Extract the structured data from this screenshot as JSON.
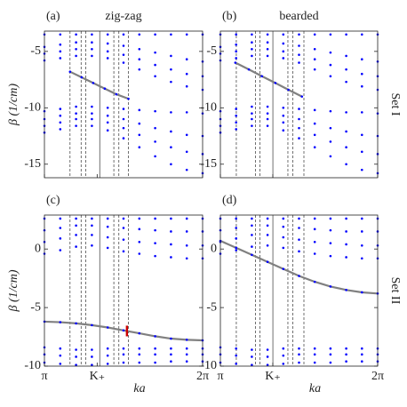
{
  "chart_data": [
    {
      "type": "scatter",
      "title": "(a)",
      "subtitle": "zig-zag",
      "ylabel": "β (1/cm)",
      "side_label": "Set I",
      "xlim": [
        3.1416,
        6.2832
      ],
      "ylim": [
        -16.2,
        -3.2
      ],
      "yticks": [
        -5,
        -10,
        -15
      ],
      "xticks": [
        {
          "value": 3.1416,
          "label": "π"
        },
        {
          "value": 4.1888,
          "label": "K₊"
        },
        {
          "value": 6.2832,
          "label": "2π"
        }
      ],
      "xtick_labels": false,
      "x": [
        3.1416,
        3.4558,
        3.7699,
        4.0841,
        4.3982,
        4.7124,
        5.0265,
        5.3407,
        5.6549,
        5.969,
        6.2832
      ],
      "vlines": [
        {
          "x": 3.65,
          "style": "dashed"
        },
        {
          "x": 3.87,
          "style": "dashed"
        },
        {
          "x": 3.96,
          "style": "dashed"
        },
        {
          "x": 4.24,
          "style": "solid"
        },
        {
          "x": 4.52,
          "style": "dashed"
        },
        {
          "x": 4.62,
          "style": "dashed"
        },
        {
          "x": 4.81,
          "style": "dashed"
        }
      ],
      "series": [
        {
          "color": "#0000ff",
          "values": [
            -3.5,
            -3.5,
            -3.5,
            -3.5,
            -3.5,
            -3.5,
            -3.5,
            -3.5,
            -3.5,
            -3.5,
            -3.5
          ]
        },
        {
          "color": "#0000ff",
          "values": [
            -4.6,
            -4.4,
            -4.2,
            -4.2,
            -4.3,
            -4.5,
            -4.8,
            -5.1,
            -5.4,
            -5.7,
            -5.9
          ]
        },
        {
          "color": "#0000ff",
          "values": [
            -5.2,
            -5.0,
            -4.8,
            -4.8,
            -5.0,
            -5.3,
            -5.7,
            -6.2,
            -6.6,
            -7.0,
            -7.2
          ]
        },
        {
          "color": "#0000ff",
          "values": [
            -5.8,
            -5.6,
            -5.4,
            -5.4,
            -5.6,
            -6.0,
            -6.6,
            -7.2,
            -7.7,
            -8.1,
            -8.4
          ]
        },
        {
          "color": "#0000ff",
          "values": [
            -10.3,
            -10.1,
            -9.9,
            -9.9,
            -10.0,
            -10.1,
            -10.2,
            -10.3,
            -10.4,
            -10.4,
            -10.5
          ]
        },
        {
          "color": "#0000ff",
          "values": [
            -11.0,
            -10.7,
            -10.5,
            -10.5,
            -10.7,
            -11.0,
            -11.4,
            -11.8,
            -12.1,
            -12.4,
            -12.5
          ]
        },
        {
          "color": "#0000ff",
          "values": [
            -11.6,
            -11.3,
            -11.0,
            -11.0,
            -11.3,
            -11.8,
            -12.4,
            -13.0,
            -13.5,
            -13.9,
            -14.1
          ]
        },
        {
          "color": "#0000ff",
          "values": [
            -12.2,
            -11.9,
            -11.6,
            -11.6,
            -12.0,
            -12.7,
            -13.5,
            -14.3,
            -15.0,
            -15.5,
            -15.8
          ]
        },
        {
          "color": "#0000ff",
          "line_color": "#808080",
          "x": [
            3.65,
            3.88,
            4.11,
            4.34,
            4.57,
            4.81
          ],
          "values": [
            -6.8,
            -7.3,
            -7.8,
            -8.3,
            -8.8,
            -9.2
          ]
        }
      ]
    },
    {
      "type": "scatter",
      "title": "(b)",
      "subtitle": "bearded",
      "xlim": [
        3.1416,
        6.2832
      ],
      "ylim": [
        -16.2,
        -3.2
      ],
      "yticks": [
        -5,
        -10,
        -15
      ],
      "xticks": [
        {
          "value": 3.1416,
          "label": "π"
        },
        {
          "value": 4.1888,
          "label": "K₊"
        },
        {
          "value": 6.2832,
          "label": "2π"
        }
      ],
      "xtick_labels": false,
      "x": [
        3.1416,
        3.4558,
        3.7699,
        4.0841,
        4.3982,
        4.7124,
        5.0265,
        5.3407,
        5.6549,
        5.969,
        6.2832
      ],
      "vlines": [
        {
          "x": 3.46,
          "style": "dashed"
        },
        {
          "x": 3.84,
          "style": "dashed"
        },
        {
          "x": 3.93,
          "style": "dashed"
        },
        {
          "x": 4.19,
          "style": "solid"
        },
        {
          "x": 4.49,
          "style": "dashed"
        },
        {
          "x": 4.59,
          "style": "dashed"
        },
        {
          "x": 4.81,
          "style": "dashed"
        }
      ],
      "series": [
        {
          "color": "#0000ff",
          "values": [
            -3.5,
            -3.5,
            -3.5,
            -3.5,
            -3.5,
            -3.5,
            -3.5,
            -3.5,
            -3.5,
            -3.5,
            -3.5
          ]
        },
        {
          "color": "#0000ff",
          "values": [
            -4.6,
            -4.4,
            -4.2,
            -4.2,
            -4.3,
            -4.5,
            -4.8,
            -5.1,
            -5.4,
            -5.7,
            -5.9
          ]
        },
        {
          "color": "#0000ff",
          "values": [
            -5.2,
            -5.0,
            -4.8,
            -4.8,
            -5.0,
            -5.3,
            -5.7,
            -6.2,
            -6.6,
            -7.0,
            -7.2
          ]
        },
        {
          "color": "#0000ff",
          "values": [
            -5.8,
            -5.6,
            -5.4,
            -5.4,
            -5.6,
            -6.0,
            -6.6,
            -7.2,
            -7.7,
            -8.1,
            -8.4
          ]
        },
        {
          "color": "#0000ff",
          "values": [
            -10.3,
            -10.1,
            -9.9,
            -9.9,
            -10.0,
            -10.1,
            -10.2,
            -10.3,
            -10.4,
            -10.4,
            -10.5
          ]
        },
        {
          "color": "#0000ff",
          "values": [
            -11.0,
            -10.7,
            -10.5,
            -10.5,
            -10.7,
            -11.0,
            -11.4,
            -11.8,
            -12.1,
            -12.4,
            -12.5
          ]
        },
        {
          "color": "#0000ff",
          "values": [
            -11.6,
            -11.3,
            -11.0,
            -11.0,
            -11.3,
            -11.8,
            -12.4,
            -13.0,
            -13.5,
            -13.9,
            -14.1
          ]
        },
        {
          "color": "#0000ff",
          "values": [
            -12.2,
            -11.9,
            -11.6,
            -11.6,
            -12.0,
            -12.7,
            -13.5,
            -14.3,
            -15.0,
            -15.5,
            -15.8
          ]
        },
        {
          "color": "#0000ff",
          "line_color": "#808080",
          "x": [
            3.44,
            3.71,
            3.97,
            4.24,
            4.5,
            4.77
          ],
          "values": [
            -6.0,
            -6.6,
            -7.2,
            -7.8,
            -8.4,
            -9.0
          ]
        }
      ]
    },
    {
      "type": "scatter",
      "title": "(c)",
      "ylabel": "β (1/cm)",
      "xlabel": "ka",
      "side_label": "Set II",
      "xlim": [
        3.1416,
        6.2832
      ],
      "ylim": [
        -10,
        2.9
      ],
      "yticks": [
        0,
        -5,
        -10
      ],
      "xticks": [
        {
          "value": 3.1416,
          "label": "π"
        },
        {
          "value": 4.1888,
          "label": "K₊"
        },
        {
          "value": 6.2832,
          "label": "2π"
        }
      ],
      "xtick_labels": true,
      "x": [
        3.1416,
        3.4558,
        3.7699,
        4.0841,
        4.3982,
        4.7124,
        5.0265,
        5.3407,
        5.6549,
        5.969,
        6.2832
      ],
      "vlines": [
        {
          "x": 3.65,
          "style": "dashed"
        },
        {
          "x": 3.87,
          "style": "dashed"
        },
        {
          "x": 3.96,
          "style": "dashed"
        },
        {
          "x": 4.24,
          "style": "solid"
        },
        {
          "x": 4.52,
          "style": "dashed"
        },
        {
          "x": 4.62,
          "style": "dashed"
        },
        {
          "x": 4.81,
          "style": "dashed"
        }
      ],
      "series": [
        {
          "color": "#0000ff",
          "values": [
            2.6,
            2.6,
            2.6,
            2.6,
            2.6,
            2.6,
            2.6,
            2.6,
            2.6,
            2.6,
            2.6
          ]
        },
        {
          "color": "#0000ff",
          "values": [
            1.6,
            1.8,
            2.0,
            2.0,
            1.9,
            1.8,
            1.7,
            1.6,
            1.5,
            1.5,
            1.5
          ]
        },
        {
          "color": "#0000ff",
          "values": [
            0.6,
            0.9,
            1.2,
            1.2,
            1.0,
            0.8,
            0.6,
            0.5,
            0.4,
            0.3,
            0.3
          ]
        },
        {
          "color": "#0000ff",
          "values": [
            -0.4,
            -0.1,
            0.2,
            0.3,
            0.1,
            -0.2,
            -0.4,
            -0.6,
            -0.7,
            -0.8,
            -0.8
          ]
        },
        {
          "color": "#0000ff",
          "values": [
            -8.4,
            -8.5,
            -8.6,
            -8.6,
            -8.5,
            -8.5,
            -8.5,
            -8.5,
            -8.5,
            -8.5,
            -8.5
          ]
        },
        {
          "color": "#0000ff",
          "values": [
            -9.0,
            -9.1,
            -9.2,
            -9.2,
            -9.1,
            -9.0,
            -9.0,
            -9.0,
            -9.0,
            -9.0,
            -9.0
          ]
        },
        {
          "color": "#0000ff",
          "values": [
            -9.7,
            -9.8,
            -9.9,
            -9.9,
            -9.8,
            -9.7,
            -9.7,
            -9.7,
            -9.6,
            -9.6,
            -9.6
          ]
        },
        {
          "color": "#0000ff",
          "line_color": "#808080",
          "values": [
            -6.2,
            -6.25,
            -6.35,
            -6.5,
            -6.7,
            -6.95,
            -7.2,
            -7.45,
            -7.65,
            -7.75,
            -7.8
          ]
        },
        {
          "color": "#cc0000",
          "marker": "tick",
          "x": [
            4.78
          ],
          "values": [
            -7.0
          ]
        }
      ]
    },
    {
      "type": "scatter",
      "title": "(d)",
      "xlabel": "ka",
      "xlim": [
        3.1416,
        6.2832
      ],
      "ylim": [
        -10,
        2.9
      ],
      "yticks": [
        0,
        -5,
        -10
      ],
      "xticks": [
        {
          "value": 3.1416,
          "label": "π"
        },
        {
          "value": 4.1888,
          "label": "K₊"
        },
        {
          "value": 6.2832,
          "label": "2π"
        }
      ],
      "xtick_labels": true,
      "x": [
        3.1416,
        3.4558,
        3.7699,
        4.0841,
        4.3982,
        4.7124,
        5.0265,
        5.3407,
        5.6549,
        5.969,
        6.2832
      ],
      "vlines": [
        {
          "x": 3.46,
          "style": "dashed"
        },
        {
          "x": 3.84,
          "style": "dashed"
        },
        {
          "x": 3.93,
          "style": "dashed"
        },
        {
          "x": 4.19,
          "style": "solid"
        },
        {
          "x": 4.49,
          "style": "dashed"
        },
        {
          "x": 4.59,
          "style": "dashed"
        },
        {
          "x": 4.81,
          "style": "dashed"
        }
      ],
      "series": [
        {
          "color": "#0000ff",
          "values": [
            2.6,
            2.6,
            2.6,
            2.6,
            2.6,
            2.6,
            2.6,
            2.6,
            2.6,
            2.6,
            2.6
          ]
        },
        {
          "color": "#0000ff",
          "values": [
            1.6,
            1.8,
            2.0,
            2.0,
            1.9,
            1.8,
            1.7,
            1.6,
            1.5,
            1.5,
            1.5
          ]
        },
        {
          "color": "#0000ff",
          "values": [
            0.6,
            0.9,
            1.2,
            1.2,
            1.0,
            0.8,
            0.6,
            0.5,
            0.4,
            0.3,
            0.3
          ]
        },
        {
          "color": "#0000ff",
          "values": [
            -0.4,
            -0.1,
            0.2,
            0.3,
            0.1,
            -0.2,
            -0.4,
            -0.6,
            -0.7,
            -0.8,
            -0.8
          ]
        },
        {
          "color": "#0000ff",
          "values": [
            -8.4,
            -8.5,
            -8.6,
            -8.6,
            -8.5,
            -8.5,
            -8.5,
            -8.5,
            -8.5,
            -8.5,
            -8.5
          ]
        },
        {
          "color": "#0000ff",
          "values": [
            -9.0,
            -9.1,
            -9.2,
            -9.2,
            -9.1,
            -9.0,
            -9.0,
            -9.0,
            -9.0,
            -9.0,
            -9.0
          ]
        },
        {
          "color": "#0000ff",
          "values": [
            -9.7,
            -9.8,
            -9.9,
            -9.9,
            -9.8,
            -9.7,
            -9.7,
            -9.7,
            -9.6,
            -9.6,
            -9.6
          ]
        },
        {
          "color": "#0000ff",
          "line_color": "#808080",
          "values": [
            0.7,
            0.1,
            -0.5,
            -1.1,
            -1.7,
            -2.3,
            -2.8,
            -3.2,
            -3.5,
            -3.7,
            -3.8
          ]
        }
      ]
    }
  ]
}
